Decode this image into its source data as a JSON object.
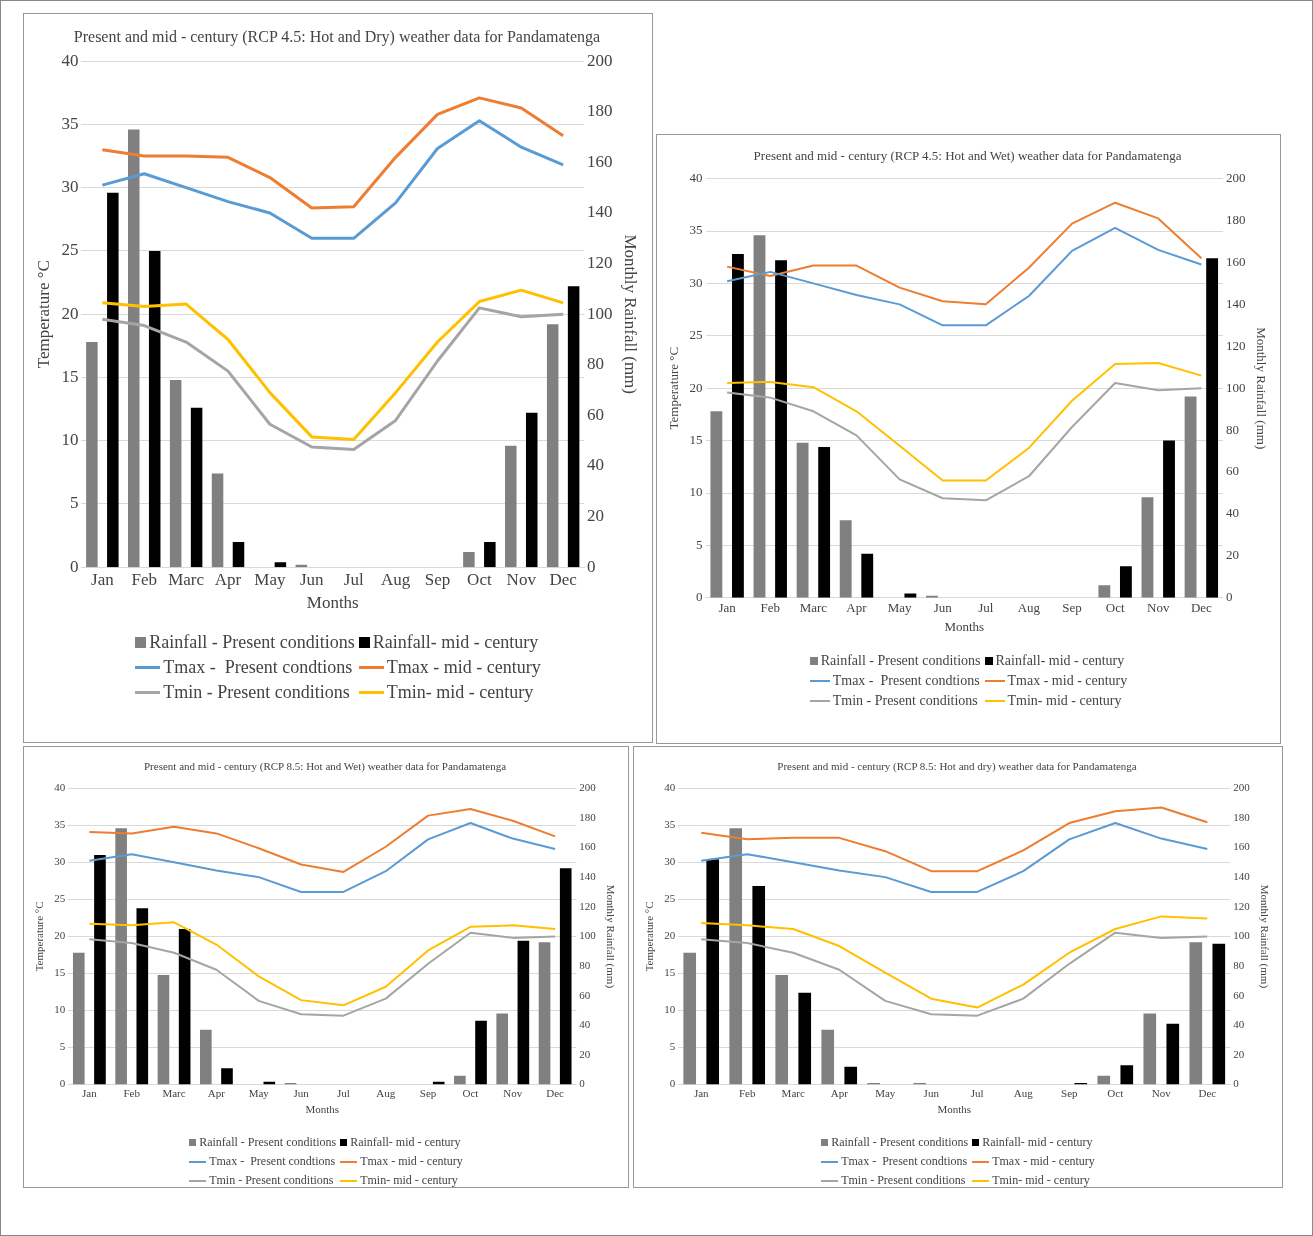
{
  "chart_data": [
    {
      "type": "bar",
      "title": "Present and mid - century (RCP 4.5: Hot and Dry) weather data for Pandamatenga",
      "xlabel": "Months",
      "ylabel": "Temperature °C",
      "y2label": "Monthly Rainfall (mm)",
      "categories": [
        "Jan",
        "Feb",
        "Marc",
        "Apr",
        "May",
        "Jun",
        "Jul",
        "Aug",
        "Sep",
        "Oct",
        "Nov",
        "Dec"
      ],
      "ylim": [
        0,
        40
      ],
      "yticks": [
        0,
        5,
        10,
        15,
        20,
        25,
        30,
        35,
        40
      ],
      "y2lim": [
        0,
        200
      ],
      "y2ticks": [
        0,
        20,
        40,
        60,
        80,
        100,
        120,
        140,
        160,
        180,
        200
      ],
      "grid": "y",
      "legend": "bottom",
      "series": [
        {
          "name": "Rainfall - Present conditions",
          "axis": "y2",
          "color": "#808080",
          "values": [
            89,
            173,
            74,
            37,
            0,
            1,
            0,
            0,
            0,
            6,
            48,
            96
          ]
        },
        {
          "name": "Rainfall- mid - century",
          "axis": "y2",
          "color": "#000000",
          "values": [
            148,
            125,
            63,
            10,
            2,
            0,
            0,
            0,
            0,
            10,
            61,
            111
          ]
        },
        {
          "name": "Tmax -  Present condtions",
          "type": "line",
          "color": "#5b9bd5",
          "values": [
            30.2,
            31.1,
            30.0,
            28.9,
            28.0,
            26.0,
            26.0,
            28.8,
            33.1,
            35.3,
            33.2,
            31.8
          ]
        },
        {
          "name": "Tmax - mid - century",
          "type": "line",
          "color": "#ed7d31",
          "values": [
            33.0,
            32.5,
            32.5,
            32.4,
            30.8,
            28.4,
            28.5,
            32.4,
            35.8,
            37.1,
            36.3,
            34.1
          ]
        },
        {
          "name": "Tmin - Present conditions",
          "type": "line",
          "color": "#a5a5a5",
          "values": [
            19.6,
            19.1,
            17.8,
            15.5,
            11.3,
            9.5,
            9.3,
            11.6,
            16.3,
            20.5,
            19.8,
            20.0
          ]
        },
        {
          "name": "Tmin- mid - century",
          "type": "line",
          "color": "#ffc000",
          "values": [
            20.9,
            20.6,
            20.8,
            18.0,
            13.8,
            10.3,
            10.1,
            13.8,
            17.8,
            21.0,
            21.9,
            20.9
          ]
        }
      ]
    },
    {
      "type": "bar",
      "title": "Present and mid - century (RCP 4.5: Hot and Wet) weather data for Pandamatenga",
      "xlabel": "Months",
      "ylabel": "Temperature °C",
      "y2label": "Monthly Rainfall (mm)",
      "categories": [
        "Jan",
        "Feb",
        "Marc",
        "Apr",
        "May",
        "Jun",
        "Jul",
        "Aug",
        "Sep",
        "Oct",
        "Nov",
        "Dec"
      ],
      "ylim": [
        0,
        40
      ],
      "yticks": [
        0,
        5,
        10,
        15,
        20,
        25,
        30,
        35,
        40
      ],
      "y2lim": [
        0,
        200
      ],
      "y2ticks": [
        0,
        20,
        40,
        60,
        80,
        100,
        120,
        140,
        160,
        180,
        200
      ],
      "grid": "y",
      "legend": "bottom",
      "series": [
        {
          "name": "Rainfall - Present conditions",
          "axis": "y2",
          "color": "#808080",
          "values": [
            89,
            173,
            74,
            37,
            0,
            1,
            0,
            0,
            0,
            6,
            48,
            96
          ]
        },
        {
          "name": "Rainfall- mid - century",
          "axis": "y2",
          "color": "#000000",
          "values": [
            164,
            161,
            72,
            21,
            2,
            0,
            0,
            0,
            0,
            15,
            75,
            162
          ]
        },
        {
          "name": "Tmax -  Present condtions",
          "type": "line",
          "color": "#5b9bd5",
          "values": [
            30.2,
            31.1,
            30.0,
            28.9,
            28.0,
            26.0,
            26.0,
            28.8,
            33.1,
            35.3,
            33.2,
            31.8
          ]
        },
        {
          "name": "Tmax - mid - century",
          "type": "line",
          "color": "#ed7d31",
          "values": [
            31.6,
            30.7,
            31.7,
            31.7,
            29.6,
            28.3,
            28.0,
            31.5,
            35.7,
            37.7,
            36.2,
            32.4
          ]
        },
        {
          "name": "Tmin - Present conditions",
          "type": "line",
          "color": "#a5a5a5",
          "values": [
            19.6,
            19.1,
            17.8,
            15.5,
            11.3,
            9.5,
            9.3,
            11.6,
            16.3,
            20.5,
            19.8,
            20.0
          ]
        },
        {
          "name": "Tmin- mid - century",
          "type": "line",
          "color": "#ffc000",
          "values": [
            20.5,
            20.6,
            20.1,
            17.8,
            14.5,
            11.2,
            11.2,
            14.3,
            18.8,
            22.3,
            22.4,
            21.2
          ]
        }
      ]
    },
    {
      "type": "bar",
      "title": "Present and mid - century (RCP 8.5: Hot and Wet) weather data for Pandamatenga",
      "xlabel": "Months",
      "ylabel": "Temperature °C",
      "y2label": "Monthly Rainfall (mm)",
      "categories": [
        "Jan",
        "Feb",
        "Marc",
        "Apr",
        "May",
        "Jun",
        "Jul",
        "Aug",
        "Sep",
        "Oct",
        "Nov",
        "Dec"
      ],
      "ylim": [
        0,
        40
      ],
      "yticks": [
        0,
        5,
        10,
        15,
        20,
        25,
        30,
        35,
        40
      ],
      "y2lim": [
        0,
        200
      ],
      "y2ticks": [
        0,
        20,
        40,
        60,
        80,
        100,
        120,
        140,
        160,
        180,
        200
      ],
      "grid": "y",
      "legend": "bottom",
      "series": [
        {
          "name": "Rainfall - Present conditions",
          "axis": "y2",
          "color": "#808080",
          "values": [
            89,
            173,
            74,
            37,
            0,
            1,
            0,
            0,
            0,
            6,
            48,
            96
          ]
        },
        {
          "name": "Rainfall- mid - century",
          "axis": "y2",
          "color": "#000000",
          "values": [
            155,
            119,
            105,
            11,
            2,
            0,
            0,
            0,
            2,
            43,
            97,
            146
          ]
        },
        {
          "name": "Tmax -  Present condtions",
          "type": "line",
          "color": "#5b9bd5",
          "values": [
            30.2,
            31.1,
            30.0,
            28.9,
            28.0,
            26.0,
            26.0,
            28.8,
            33.1,
            35.3,
            33.2,
            31.8
          ]
        },
        {
          "name": "Tmax - mid - century",
          "type": "line",
          "color": "#ed7d31",
          "values": [
            34.1,
            33.9,
            34.8,
            33.9,
            31.9,
            29.7,
            28.7,
            32.1,
            36.3,
            37.2,
            35.6,
            33.5
          ]
        },
        {
          "name": "Tmin - Present conditions",
          "type": "line",
          "color": "#a5a5a5",
          "values": [
            19.6,
            19.1,
            17.8,
            15.5,
            11.3,
            9.5,
            9.3,
            11.6,
            16.3,
            20.5,
            19.8,
            20.0
          ]
        },
        {
          "name": "Tmin- mid - century",
          "type": "line",
          "color": "#ffc000",
          "values": [
            21.7,
            21.5,
            21.9,
            18.9,
            14.6,
            11.4,
            10.7,
            13.2,
            18.1,
            21.3,
            21.5,
            21.0
          ]
        }
      ]
    },
    {
      "type": "bar",
      "title": "Present and mid - century (RCP 8.5: Hot and dry) weather data for Pandamatenga",
      "xlabel": "Months",
      "ylabel": "Temperature °C",
      "y2label": "Monthly Rainfall (mm)",
      "categories": [
        "Jan",
        "Feb",
        "Marc",
        "Apr",
        "May",
        "Jun",
        "Jul",
        "Aug",
        "Sep",
        "Oct",
        "Nov",
        "Dec"
      ],
      "ylim": [
        0,
        40
      ],
      "yticks": [
        0,
        5,
        10,
        15,
        20,
        25,
        30,
        35,
        40
      ],
      "y2lim": [
        0,
        200
      ],
      "y2ticks": [
        0,
        20,
        40,
        60,
        80,
        100,
        120,
        140,
        160,
        180,
        200
      ],
      "grid": "y",
      "legend": "bottom",
      "series": [
        {
          "name": "Rainfall - Present conditions",
          "axis": "y2",
          "color": "#808080",
          "values": [
            89,
            173,
            74,
            37,
            1,
            1,
            0,
            0,
            0,
            6,
            48,
            96
          ]
        },
        {
          "name": "Rainfall- mid - century",
          "axis": "y2",
          "color": "#000000",
          "values": [
            152,
            134,
            62,
            12,
            0,
            0,
            0,
            0,
            1,
            13,
            41,
            95
          ]
        },
        {
          "name": "Tmax -  Present condtions",
          "type": "line",
          "color": "#5b9bd5",
          "values": [
            30.2,
            31.1,
            30.0,
            28.9,
            28.0,
            26.0,
            26.0,
            28.8,
            33.1,
            35.3,
            33.2,
            31.8
          ]
        },
        {
          "name": "Tmax - mid - century",
          "type": "line",
          "color": "#ed7d31",
          "values": [
            34.0,
            33.1,
            33.3,
            33.3,
            31.5,
            28.8,
            28.8,
            31.6,
            35.3,
            36.9,
            37.4,
            35.4
          ]
        },
        {
          "name": "Tmin - Present conditions",
          "type": "line",
          "color": "#a5a5a5",
          "values": [
            19.6,
            19.1,
            17.8,
            15.5,
            11.3,
            9.5,
            9.3,
            11.6,
            16.3,
            20.5,
            19.8,
            20.0
          ]
        },
        {
          "name": "Tmin- mid - century",
          "type": "line",
          "color": "#ffc000",
          "values": [
            21.8,
            21.5,
            21.0,
            18.7,
            15.1,
            11.6,
            10.4,
            13.5,
            17.8,
            21.0,
            22.7,
            22.4
          ]
        }
      ]
    }
  ]
}
